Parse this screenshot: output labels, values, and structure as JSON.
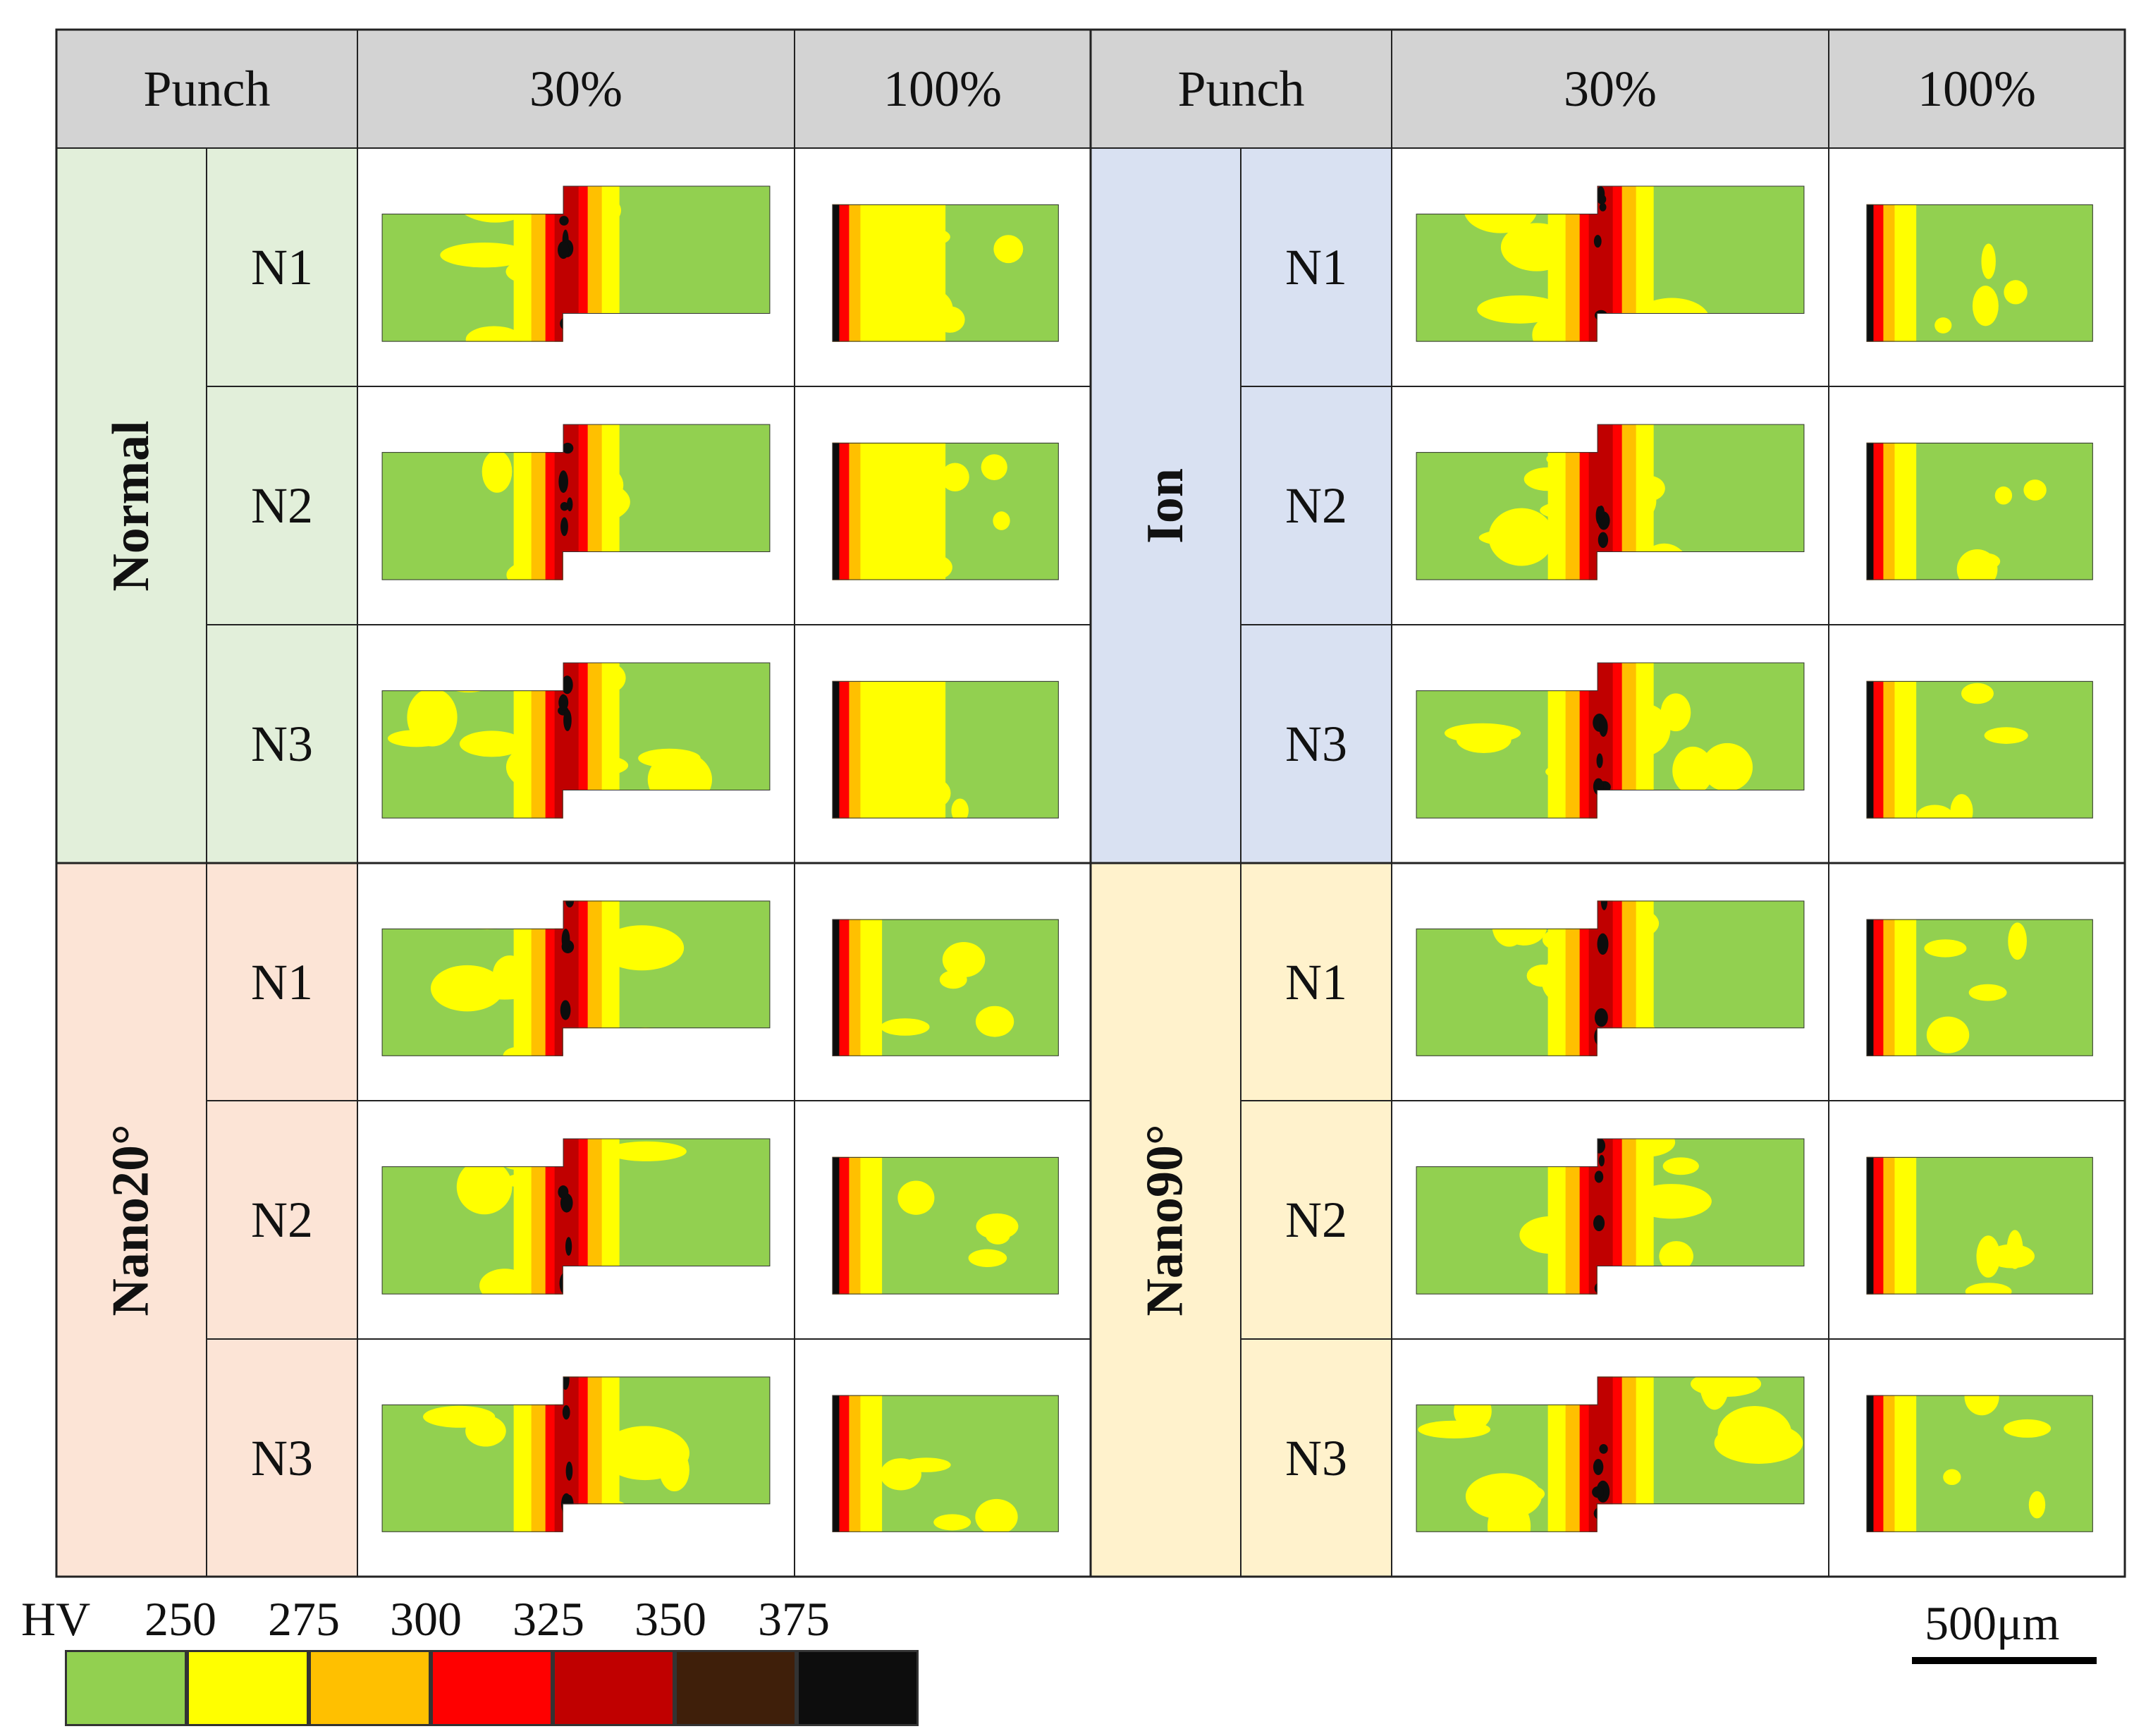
{
  "header": {
    "left": {
      "punch_label": "Punch",
      "col_a": "30%",
      "col_b": "100%"
    },
    "right": {
      "punch_label": "Punch",
      "col_a": "30%",
      "col_b": "100%"
    }
  },
  "groups": [
    {
      "label": "Normal",
      "color": "#e2efda",
      "rows": [
        "N1",
        "N2",
        "N3"
      ]
    },
    {
      "label": "Ion",
      "color": "#d9e1f2",
      "rows": [
        "N1",
        "N2",
        "N3"
      ]
    },
    {
      "label": "Nano20°",
      "color": "#fce4d6",
      "rows": [
        "N1",
        "N2",
        "N3"
      ]
    },
    {
      "label": "Nano90°",
      "color": "#fff2cc",
      "rows": [
        "N1",
        "N2",
        "N3"
      ]
    }
  ],
  "legend": {
    "unit": "HV",
    "ticks": [
      "250",
      "275",
      "300",
      "325",
      "350",
      "375"
    ],
    "colors": [
      "#92d050",
      "#ffff00",
      "#ffc000",
      "#ff0000",
      "#c00000",
      "#3f1f0a",
      "#0d0d0d"
    ]
  },
  "scale_bar": {
    "label": "500μm"
  }
}
